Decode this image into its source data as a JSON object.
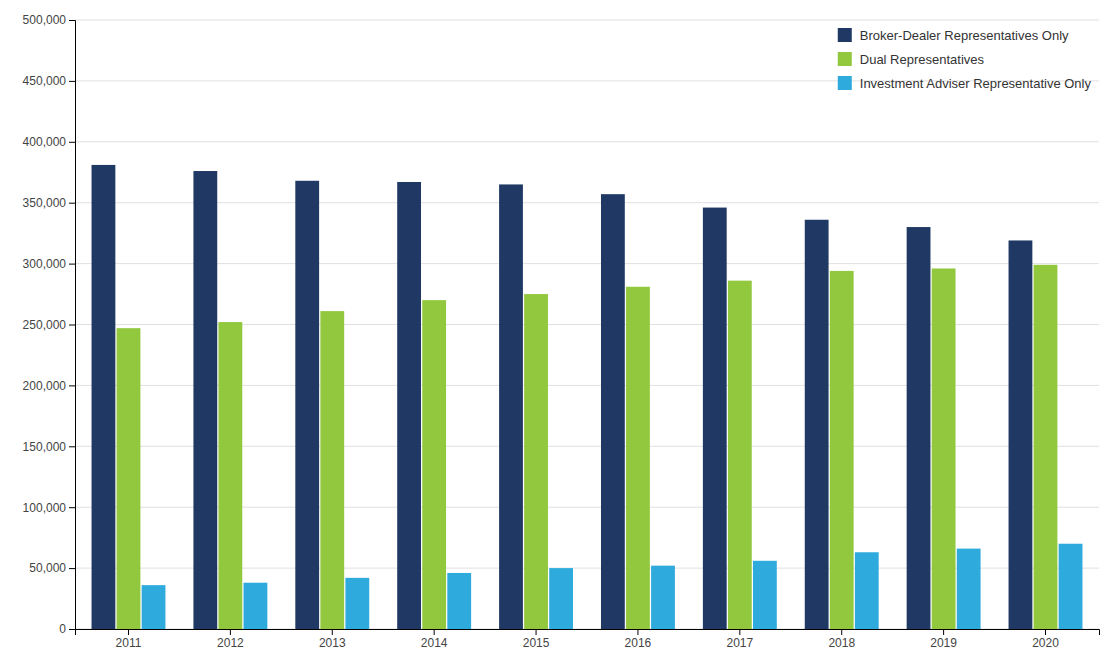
{
  "chart_data": {
    "type": "bar",
    "categories": [
      "2011",
      "2012",
      "2013",
      "2014",
      "2015",
      "2016",
      "2017",
      "2018",
      "2019",
      "2020"
    ],
    "series": [
      {
        "name": "Broker-Dealer Representatives Only",
        "color": "#1f3864",
        "values": [
          381000,
          376000,
          368000,
          367000,
          365000,
          357000,
          346000,
          336000,
          330000,
          319000
        ]
      },
      {
        "name": "Dual Representatives",
        "color": "#92c83e",
        "values": [
          247000,
          252000,
          261000,
          270000,
          275000,
          281000,
          286000,
          294000,
          296000,
          299000
        ]
      },
      {
        "name": "Investment Adviser Representative Only",
        "color": "#2eaadc",
        "values": [
          36000,
          38000,
          42000,
          46000,
          50000,
          52000,
          56000,
          63000,
          66000,
          70000
        ]
      }
    ],
    "ylim": [
      0,
      500000
    ],
    "yticks": [
      0,
      {
        "value": 50000,
        "label": "50,000"
      },
      {
        "value": 100000,
        "label": "100,000"
      },
      {
        "value": 150000,
        "label": "150,000"
      },
      {
        "value": 200000,
        "label": "200,000"
      },
      {
        "value": 250000,
        "label": "250,000"
      },
      {
        "value": 300000,
        "label": "300,000"
      },
      {
        "value": 350000,
        "label": "350,000"
      },
      {
        "value": 400000,
        "label": "400,000"
      },
      {
        "value": 450000,
        "label": "450,000"
      },
      {
        "value": 500000,
        "label": "500,000"
      }
    ],
    "grid": true,
    "legend": "upper right"
  }
}
